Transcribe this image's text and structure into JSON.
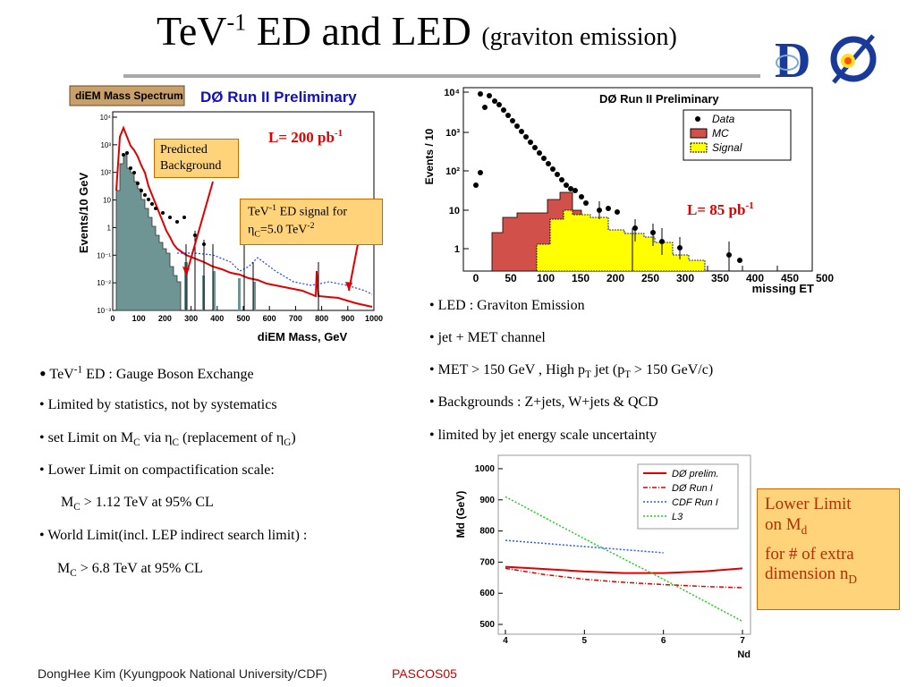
{
  "title": {
    "main_pre": "TeV",
    "main_sup": "-1",
    "main_post": " ED and LED ",
    "paren": "(graviton emission)"
  },
  "logo": {
    "text": "DØ",
    "icon": "d0-experiment-logo"
  },
  "left_plot": {
    "header_tag": "diEM Mass Spectrum",
    "header_title": "DØ Run II Preliminary",
    "lumi": "L= 200 pb",
    "lumi_sup": "-1",
    "ylabel": "Events/10 GeV",
    "xlabel": "diEM Mass, GeV",
    "x_ticks": [
      "0",
      "100",
      "200",
      "300",
      "400",
      "500",
      "600",
      "700",
      "800",
      "900",
      "1000"
    ],
    "y_ticks": [
      "10⁴",
      "10³",
      "10²",
      "10",
      "1",
      "10⁻¹",
      "10⁻²",
      "10⁻³"
    ],
    "callout_bg": {
      "line1": "Predicted",
      "line2": "Background"
    },
    "callout_sig": {
      "pre": "TeV",
      "sup": "-1",
      "post": " ED signal for",
      "eta": "η",
      "eta_sub": "C",
      "value": "=5.0 TeV",
      "value_sup": "-2"
    }
  },
  "right_plot": {
    "title": "DØ Run II Preliminary",
    "ylabel": "Events / 10",
    "xlabel": "missing ET",
    "lumi": "L= 85 pb",
    "lumi_sup": "-1",
    "x_ticks": [
      "0",
      "50",
      "100",
      "150",
      "200",
      "250",
      "300",
      "350",
      "400",
      "450",
      "500"
    ],
    "y_ticks": [
      "10⁴",
      "10³",
      "10²",
      "10",
      "1"
    ],
    "legend": [
      "Data",
      "MC",
      "Signal"
    ],
    "colors": {
      "mc": "#d2504a",
      "signal": "#ffff00"
    }
  },
  "led_bullets": {
    "b1": "• LED : Graviton Emission",
    "b2": "• jet + MET channel",
    "b3_pre": "• MET > 150 GeV , High p",
    "b3_sub": "T",
    "b3_mid": " jet (p",
    "b3_sub2": "T",
    "b3_post": " > 150 GeV/c)",
    "b4": "• Backgrounds : Z+jets, W+jets & QCD",
    "b5": "• limited by jet energy scale uncertainty"
  },
  "ed_bullets": {
    "b1_dot": "•",
    "b1_pre": " TeV",
    "b1_sup": "-1",
    "b1_post": " ED : Gauge Boson Exchange",
    "b2": "• Limited by statistics, not by systematics",
    "b3_pre": "•  set Limit on M",
    "b3_sub": "C",
    "b3_mid": " via η",
    "b3_sub2": "C",
    "b3_mid2": " (replacement of η",
    "b3_sub3": "G",
    "b3_post": ")",
    "b4": "• Lower Limit on compactification scale:",
    "b5_pre": "M",
    "b5_sub": "C",
    "b5_post": " > 1.12 TeV at 95% CL",
    "b6": "• World Limit(incl. LEP indirect search limit) :",
    "b7_pre": "M",
    "b7_sub": "C",
    "b7_post": " > 6.8 TeV at 95% CL"
  },
  "chart_data": {
    "type": "line",
    "ylabel": "Md (GeV)",
    "xlabel": "Nd",
    "xlim": [
      4,
      7
    ],
    "ylim": [
      480,
      1020
    ],
    "x_ticks": [
      "4",
      "5",
      "6",
      "7"
    ],
    "y_ticks": [
      "1000",
      "900",
      "800",
      "700",
      "600",
      "500"
    ],
    "series": [
      {
        "name": "DØ prelim.",
        "color": "#e00000",
        "style": "solid",
        "x": [
          4,
          4.5,
          5,
          5.5,
          6,
          6.5,
          7
        ],
        "y": [
          685,
          678,
          670,
          665,
          665,
          670,
          680
        ]
      },
      {
        "name": "DØ Run I",
        "color": "#e00000",
        "style": "dashdot",
        "x": [
          4,
          4.5,
          5,
          5.5,
          6,
          6.5,
          7
        ],
        "y": [
          680,
          660,
          645,
          635,
          628,
          622,
          618
        ]
      },
      {
        "name": "CDF Run I",
        "color": "#3355ff",
        "style": "dotted",
        "x": [
          4,
          5,
          6
        ],
        "y": [
          770,
          750,
          730
        ]
      },
      {
        "name": "L3",
        "color": "#22cc22",
        "style": "dotted",
        "x": [
          4,
          5,
          6,
          7
        ],
        "y": [
          910,
          775,
          645,
          510
        ]
      }
    ]
  },
  "limit_box": {
    "line1": "Lower Limit",
    "line2_pre": "on M",
    "line2_sub": "d",
    "line3": "for # of extra",
    "line4_pre": "dimension n",
    "line4_sub": "D"
  },
  "footer": {
    "author": "DongHee Kim (Kyungpook National University/CDF)",
    "conference": "PASCOS05",
    "conference_color": "#cc0000"
  }
}
